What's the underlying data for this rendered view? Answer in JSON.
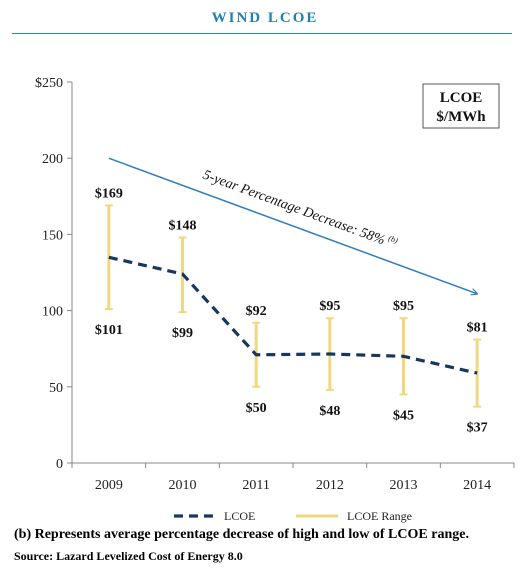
{
  "title": "WIND LCOE",
  "footnote": "(b) Represents average percentage decrease of high and low of LCOE range.",
  "source": "Source: Lazard Levelized Cost of Energy 8.0",
  "colors": {
    "title": "#1f7fb0",
    "lcoe_line": "#17375e",
    "range": "#f2d77e",
    "arrow": "#2b7fc0"
  },
  "chart_data": {
    "type": "line",
    "categories": [
      "2009",
      "2010",
      "2011",
      "2012",
      "2013",
      "2014"
    ],
    "ylim": [
      0,
      250
    ],
    "yticks": [
      0,
      50,
      100,
      150,
      200,
      250
    ],
    "ytick_labels": [
      "0",
      "50",
      "100",
      "150",
      "200",
      "$250"
    ],
    "unit_box": [
      "LCOE",
      "$/MWh"
    ],
    "series": [
      {
        "name": "LCOE",
        "style": "dashed",
        "values": [
          135,
          124,
          71,
          71.5,
          70,
          59
        ]
      },
      {
        "name": "LCOE Range",
        "style": "range",
        "low": [
          101,
          99,
          50,
          48,
          45,
          37
        ],
        "high": [
          169,
          148,
          92,
          95,
          95,
          81
        ],
        "low_labels": [
          "$101",
          "$99",
          "$50",
          "$48",
          "$45",
          "$37"
        ],
        "high_labels": [
          "$169",
          "$148",
          "$92",
          "$95",
          "$95",
          "$81"
        ]
      }
    ],
    "annotation": {
      "text": "5-year Percentage Decrease: 58%",
      "superscript": "(b)",
      "from": {
        "x": "2009",
        "y": 200
      },
      "to": {
        "x": "2014",
        "y": 111
      }
    },
    "grid": false,
    "legend": "bottom"
  }
}
